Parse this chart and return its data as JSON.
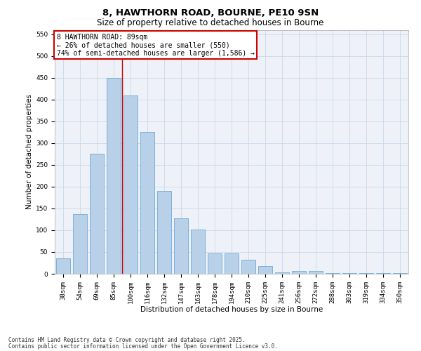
{
  "title_line1": "8, HAWTHORN ROAD, BOURNE, PE10 9SN",
  "title_line2": "Size of property relative to detached houses in Bourne",
  "xlabel": "Distribution of detached houses by size in Bourne",
  "ylabel": "Number of detached properties",
  "categories": [
    "38sqm",
    "54sqm",
    "69sqm",
    "85sqm",
    "100sqm",
    "116sqm",
    "132sqm",
    "147sqm",
    "163sqm",
    "178sqm",
    "194sqm",
    "210sqm",
    "225sqm",
    "241sqm",
    "256sqm",
    "272sqm",
    "288sqm",
    "303sqm",
    "319sqm",
    "334sqm",
    "350sqm"
  ],
  "values": [
    35,
    137,
    275,
    450,
    410,
    325,
    190,
    127,
    101,
    46,
    46,
    32,
    18,
    4,
    6,
    7,
    2,
    1,
    2,
    1,
    2
  ],
  "bar_color": "#b8d0e8",
  "bar_edge_color": "#5a9fd4",
  "annotation_box_text": "8 HAWTHORN ROAD: 89sqm\n← 26% of detached houses are smaller (550)\n74% of semi-detached houses are larger (1,586) →",
  "annotation_box_color": "#cc0000",
  "vline_color": "#cc0000",
  "ylim": [
    0,
    560
  ],
  "yticks": [
    0,
    50,
    100,
    150,
    200,
    250,
    300,
    350,
    400,
    450,
    500,
    550
  ],
  "grid_color": "#c8d8e8",
  "bg_color": "#eef2f8",
  "footer_line1": "Contains HM Land Registry data © Crown copyright and database right 2025.",
  "footer_line2": "Contains public sector information licensed under the Open Government Licence v3.0.",
  "title_fontsize": 9.5,
  "subtitle_fontsize": 8.5,
  "axis_label_fontsize": 7.5,
  "tick_fontsize": 6.5,
  "annotation_fontsize": 7,
  "footer_fontsize": 5.5
}
